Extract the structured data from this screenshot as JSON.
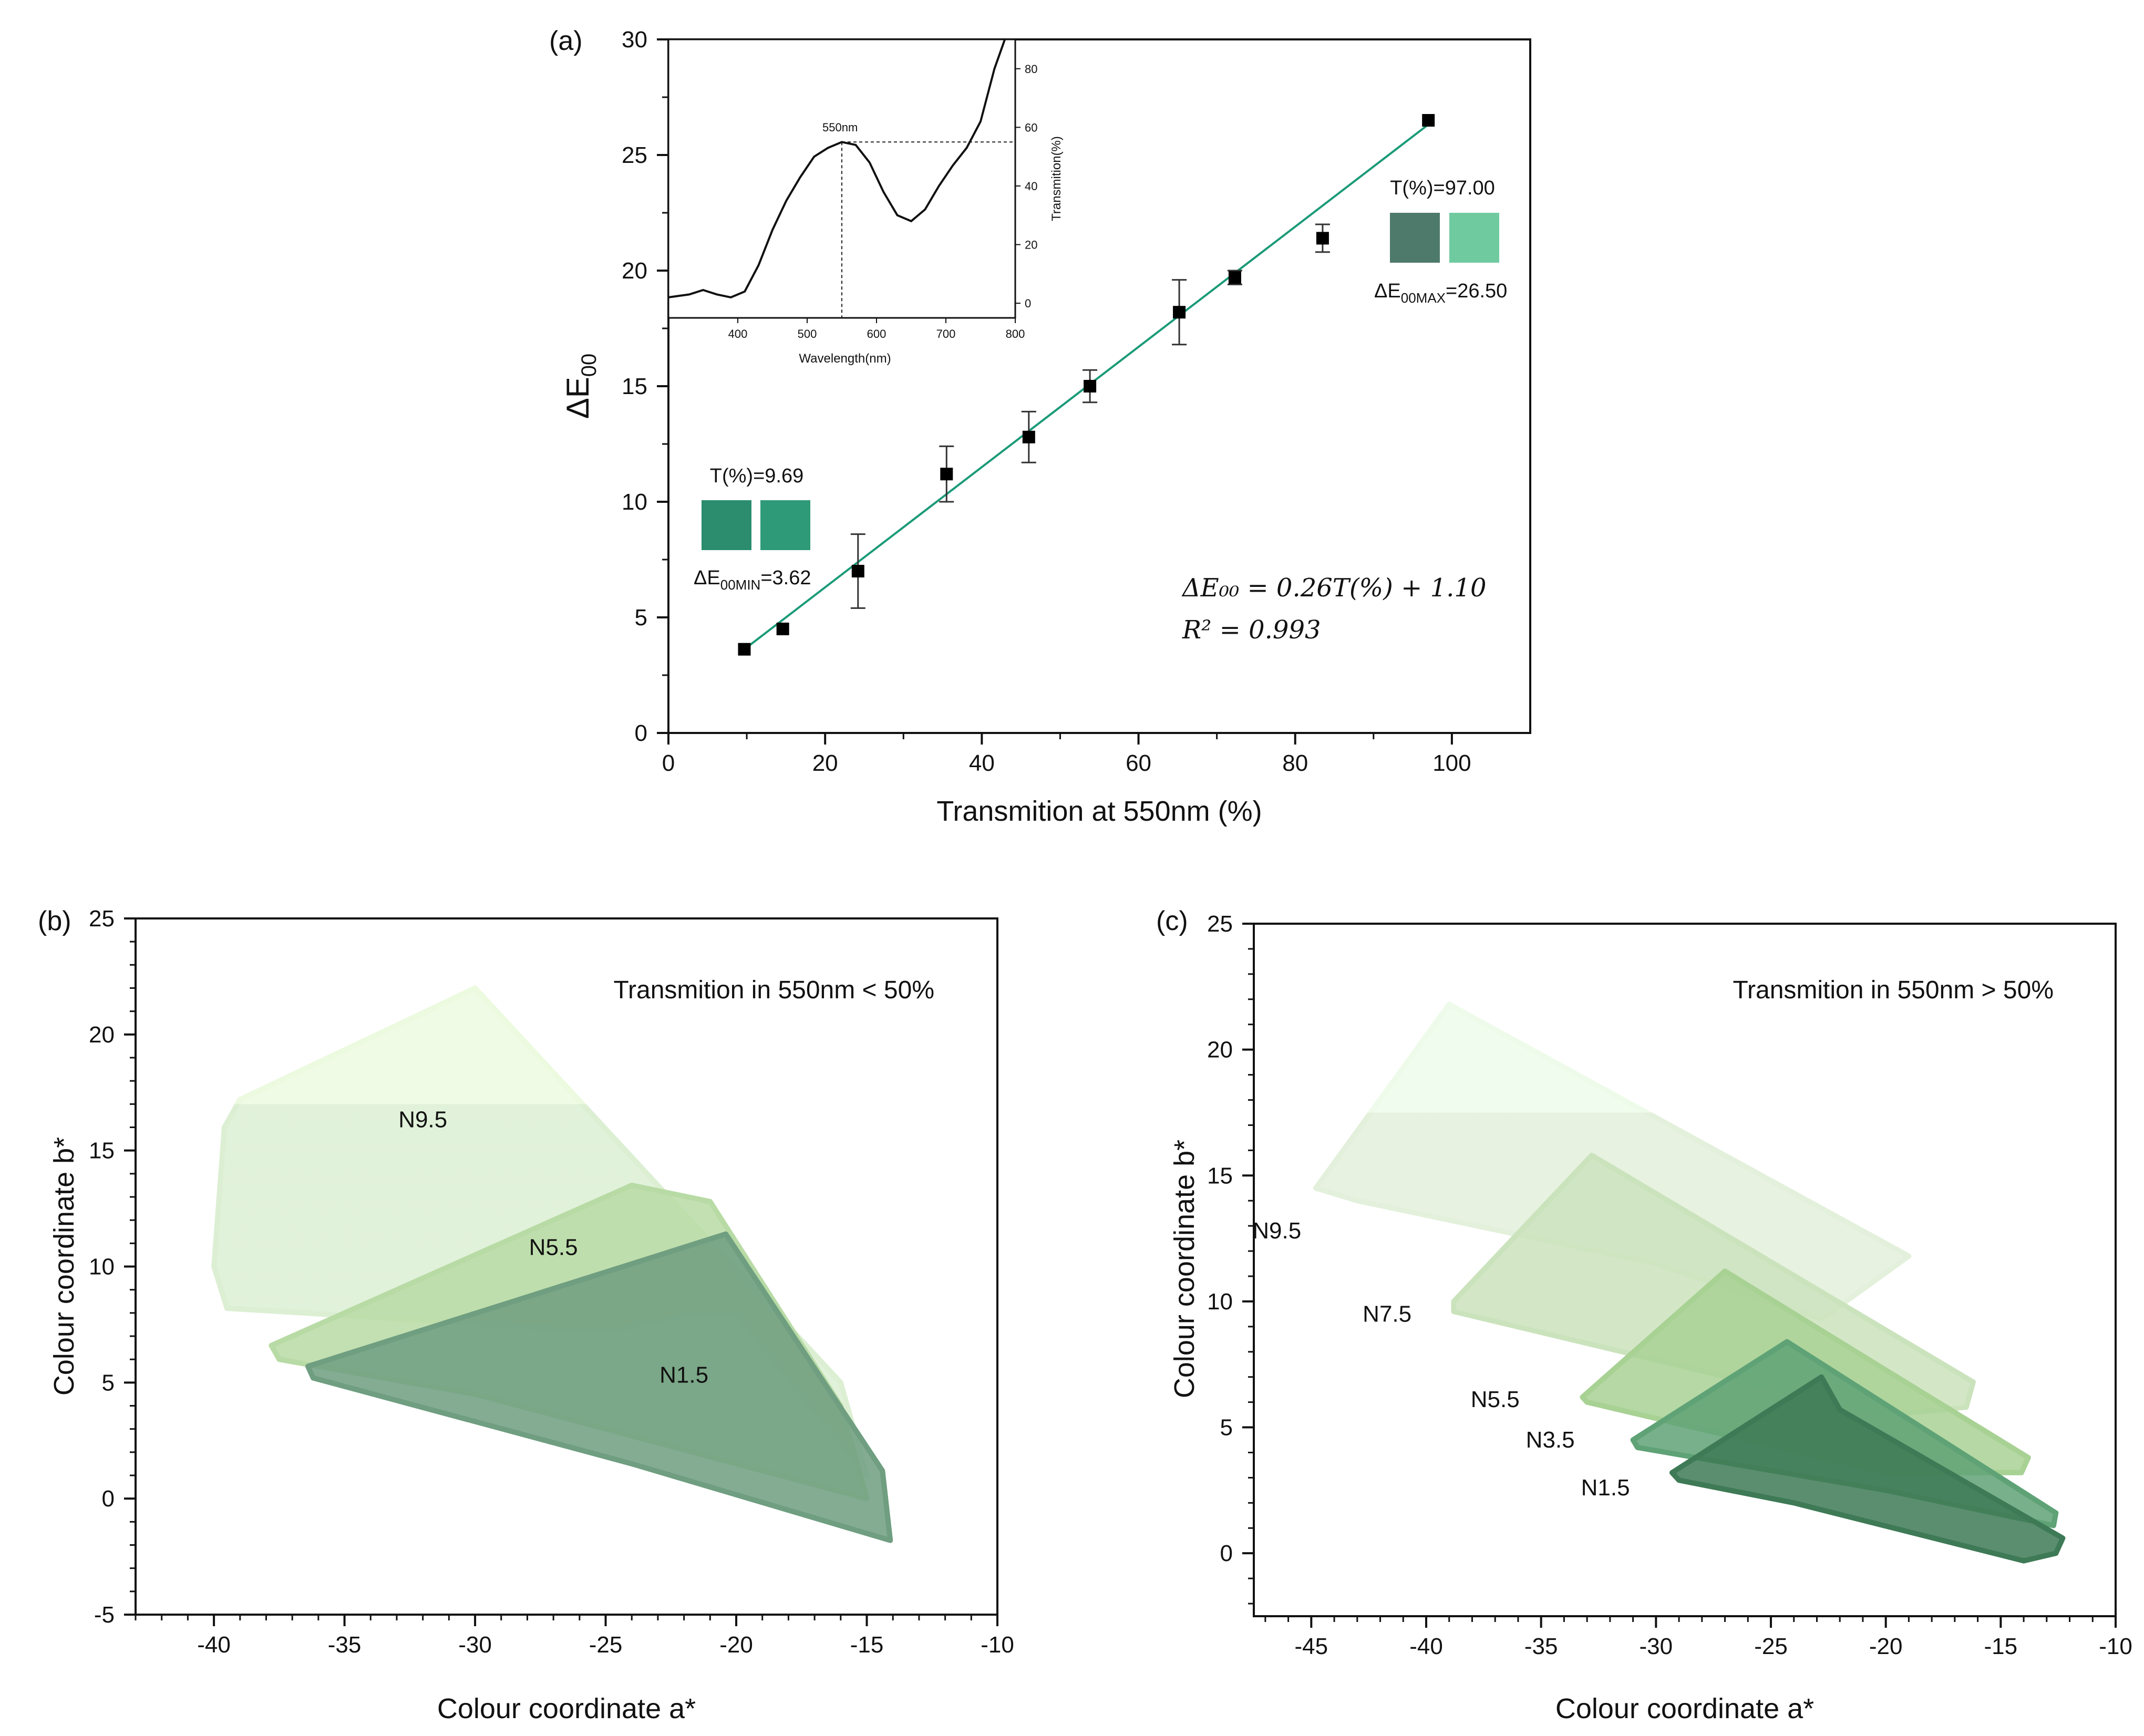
{
  "chart_data": [
    {
      "panel_label": "(a)",
      "type": "scatter",
      "xlabel": "Transmition at 550nm  (%)",
      "ylabel_main": "ΔE",
      "ylabel_sub": "00",
      "xlim": [
        0,
        110
      ],
      "ylim": [
        0,
        30
      ],
      "xticks": [
        0,
        20,
        40,
        60,
        80,
        100
      ],
      "yticks": [
        0,
        5,
        10,
        15,
        20,
        25,
        30
      ],
      "points": [
        {
          "x": 9.69,
          "y": 3.62,
          "err": 0
        },
        {
          "x": 14.6,
          "y": 4.5,
          "err": 0
        },
        {
          "x": 24.2,
          "y": 7.0,
          "err": 1.6
        },
        {
          "x": 35.5,
          "y": 11.2,
          "err": 1.2
        },
        {
          "x": 46.0,
          "y": 12.8,
          "err": 1.1
        },
        {
          "x": 53.8,
          "y": 15.0,
          "err": 0.7
        },
        {
          "x": 65.2,
          "y": 18.2,
          "err": 1.4
        },
        {
          "x": 72.3,
          "y": 19.7,
          "err": 0.3
        },
        {
          "x": 83.5,
          "y": 21.4,
          "err": 0.6
        },
        {
          "x": 97.0,
          "y": 26.5,
          "err": 0
        }
      ],
      "fit": {
        "slope": 0.26,
        "intercept": 1.1,
        "x_range": [
          9.69,
          97.0
        ],
        "color": "#1a9a78"
      },
      "equation_line1": "ΔE₀₀ = 0.26T(%) + 1.10",
      "equation_line2": "R² = 0.993",
      "swatch_min": {
        "title": "T(%)=9.69",
        "label_main": "ΔE",
        "label_sub": "00MIN",
        "label_value": "=3.62",
        "colors": [
          "#2b8c6e",
          "#2f9a78"
        ]
      },
      "swatch_max": {
        "title": "T(%)=97.00",
        "label_main": "ΔE",
        "label_sub": "00MAX",
        "label_value": "=26.50",
        "colors": [
          "#4e7a6c",
          "#6fcb9f"
        ]
      },
      "inset": {
        "type": "line",
        "xlabel": "Wavelength(nm)",
        "ylabel": "Transmition(%)",
        "xlim": [
          300,
          800
        ],
        "ylim": [
          -5,
          90
        ],
        "xticks": [
          400,
          500,
          600,
          700,
          800
        ],
        "yticks": [
          0,
          20,
          40,
          60,
          80
        ],
        "annotation": "550nm",
        "marker_x": 550,
        "marker_y": 55,
        "x": [
          300,
          330,
          350,
          370,
          390,
          410,
          430,
          450,
          470,
          490,
          510,
          530,
          550,
          570,
          590,
          610,
          630,
          650,
          670,
          690,
          710,
          730,
          750,
          770,
          785
        ],
        "y": [
          2,
          3,
          4.5,
          3,
          2,
          4,
          13,
          25,
          35,
          43,
          50,
          53,
          55,
          54,
          48,
          38,
          30,
          28,
          32,
          40,
          47,
          53,
          62,
          80,
          92
        ]
      }
    },
    {
      "panel_label": "(b)",
      "type": "area",
      "title": "Transmition in 550nm < 50%",
      "xlabel": "Colour coordinate a*",
      "ylabel": "Colour coordinate b*",
      "xlim": [
        -43,
        -10
      ],
      "ylim": [
        -5,
        25
      ],
      "xticks": [
        -40,
        -35,
        -30,
        -25,
        -20,
        -15,
        -10
      ],
      "yticks": [
        -5,
        0,
        5,
        10,
        15,
        20,
        25
      ],
      "series": [
        {
          "name": "N9.5",
          "label_at": [
            -32,
            16
          ],
          "color": "#dcefd3",
          "cap_color": "#ecfadf",
          "cap_above": 17,
          "polygon": [
            [
              -39,
              17.2
            ],
            [
              -30,
              22
            ],
            [
              -16,
              5
            ],
            [
              -15,
              1
            ],
            [
              -20,
              8
            ],
            [
              -21.5,
              8
            ],
            [
              -25,
              7.2
            ],
            [
              -39.5,
              8.2
            ],
            [
              -40,
              10
            ],
            [
              -39.6,
              16
            ]
          ]
        },
        {
          "name": "N5.5",
          "label_at": [
            -27,
            10.5
          ],
          "color": "#b8dba5",
          "cap_color": "#b8dba5",
          "cap_above": null,
          "polygon": [
            [
              -37.8,
              6.6
            ],
            [
              -24,
              13.5
            ],
            [
              -21,
              12.8
            ],
            [
              -16,
              4
            ],
            [
              -15,
              0
            ],
            [
              -20,
              1.5
            ],
            [
              -30,
              4.5
            ],
            [
              -37.5,
              6
            ]
          ]
        },
        {
          "name": "N1.5",
          "label_at": [
            -22,
            5
          ],
          "color": "#6f9e80",
          "cap_color": "#6f9e80",
          "cap_above": null,
          "polygon": [
            [
              -36.4,
              5.7
            ],
            [
              -20.4,
              11.4
            ],
            [
              -14.4,
              1.2
            ],
            [
              -14.1,
              -1.8
            ],
            [
              -24,
              1.5
            ],
            [
              -36.2,
              5.2
            ]
          ]
        }
      ]
    },
    {
      "panel_label": "(c)",
      "type": "area",
      "title": "Transmition in 550nm > 50%",
      "xlabel": "Colour coordinate a*",
      "ylabel": "Colour coordinate b*",
      "xlim": [
        -47.5,
        -10
      ],
      "ylim": [
        -2.5,
        25
      ],
      "xticks": [
        -45,
        -40,
        -35,
        -30,
        -25,
        -20,
        -15,
        -10
      ],
      "yticks": [
        0,
        5,
        10,
        15,
        20,
        25
      ],
      "series": [
        {
          "name": "N9.5",
          "label_at": [
            -46.5,
            12.5
          ],
          "color": "#e3f0db",
          "cap_color": "#eefbea",
          "cap_above": 17.5,
          "polygon": [
            [
              -44.8,
              14.5
            ],
            [
              -39,
              21.8
            ],
            [
              -19,
              11.8
            ],
            [
              -22.8,
              9.3
            ],
            [
              -30,
              11.5
            ],
            [
              -43,
              14
            ]
          ]
        },
        {
          "name": "N7.5",
          "label_at": [
            -41.7,
            9.2
          ],
          "color": "#cbe3bd",
          "cap_color": "#cbe3bd",
          "cap_above": null,
          "polygon": [
            [
              -38.8,
              10
            ],
            [
              -32.8,
              15.8
            ],
            [
              -16.2,
              6.8
            ],
            [
              -16.5,
              5.8
            ],
            [
              -20,
              5.5
            ],
            [
              -38.8,
              9.6
            ]
          ]
        },
        {
          "name": "N5.5",
          "label_at": [
            -37,
            5.8
          ],
          "color": "#a8d194",
          "cap_color": "#a8d194",
          "cap_above": null,
          "polygon": [
            [
              -33.2,
              6.2
            ],
            [
              -27,
              11.2
            ],
            [
              -13.8,
              3.8
            ],
            [
              -14.1,
              3.2
            ],
            [
              -20,
              3.2
            ],
            [
              -33,
              6
            ]
          ]
        },
        {
          "name": "N3.5",
          "label_at": [
            -34.6,
            4.2
          ],
          "color": "#5fa276",
          "cap_color": "#5fa276",
          "cap_above": null,
          "polygon": [
            [
              -31,
              4.5
            ],
            [
              -24.3,
              8.4
            ],
            [
              -12.6,
              1.6
            ],
            [
              -12.7,
              1.1
            ],
            [
              -20,
              2.5
            ],
            [
              -30.8,
              4.2
            ]
          ]
        },
        {
          "name": "N1.5",
          "label_at": [
            -32.2,
            2.3
          ],
          "color": "#3e7a56",
          "cap_color": "#3e7a56",
          "cap_above": null,
          "polygon": [
            [
              -29.3,
              3.2
            ],
            [
              -22.8,
              7
            ],
            [
              -22,
              5.7
            ],
            [
              -12.3,
              0.6
            ],
            [
              -12.6,
              0
            ],
            [
              -14,
              -0.3
            ],
            [
              -24,
              2
            ],
            [
              -29,
              2.9
            ]
          ]
        }
      ]
    }
  ]
}
